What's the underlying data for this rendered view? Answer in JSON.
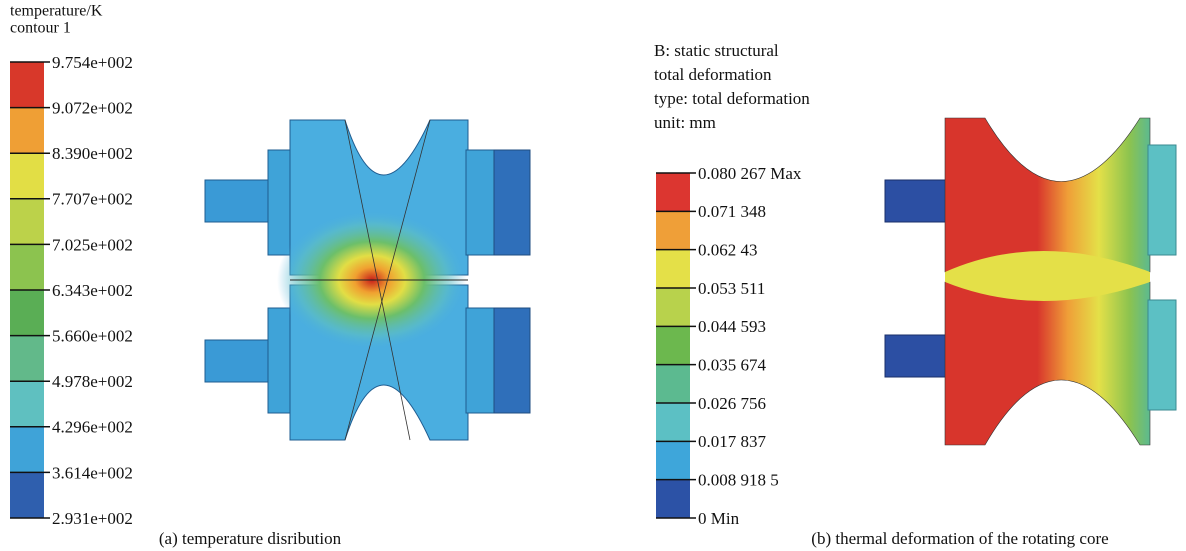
{
  "panels": [
    {
      "legend": {
        "title": [
          "temperature/K",
          "contour 1"
        ],
        "labels": [
          "9.754e+002",
          "9.072e+002",
          "8.390e+002",
          "7.707e+002",
          "7.025e+002",
          "6.343e+002",
          "5.660e+002",
          "4.978e+002",
          "4.296e+002",
          "3.614e+002",
          "2.931e+002"
        ],
        "colors": [
          "#d8382a",
          "#ef9f35",
          "#e2de45",
          "#bcd24a",
          "#8cc34f",
          "#5aae55",
          "#62b98a",
          "#5fc0c0",
          "#3fa3d8",
          "#2f5fae"
        ]
      },
      "caption": "(a) temperature disribution"
    },
    {
      "legend": {
        "title": [
          "B: static structural",
          "total deformation",
          "type: total deformation",
          "unit: mm"
        ],
        "labels": [
          "0.080 267 Max",
          "0.071 348",
          "0.062 43",
          "0.053 511",
          "0.044 593",
          "0.035 674",
          "0.026 756",
          "0.017 837",
          "0.008 918 5",
          "0 Min"
        ],
        "colors": [
          "#dc3630",
          "#ef9f38",
          "#e4e048",
          "#b8d24c",
          "#6cb84e",
          "#5cba90",
          "#5cc0c4",
          "#3ea6da",
          "#2c52a6"
        ]
      },
      "caption": "(b) thermal deformation of the rotating core"
    }
  ]
}
